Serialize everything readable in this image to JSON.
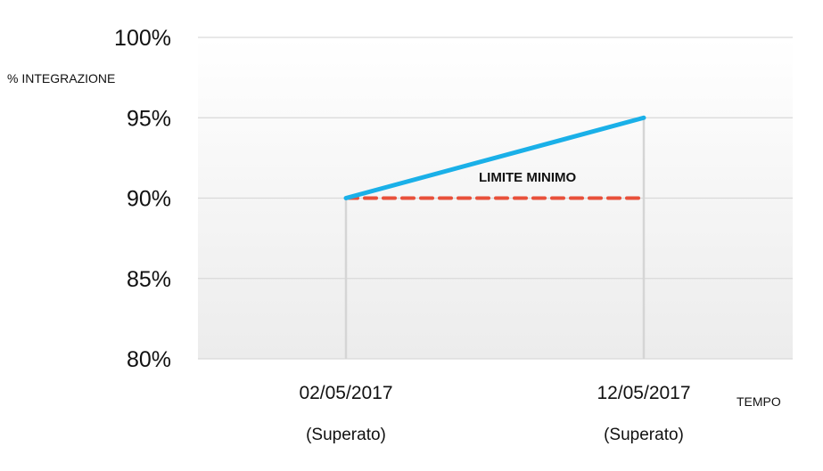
{
  "chart_data": {
    "type": "line",
    "ylabel": "% INTEGRAZIONE",
    "xlabel": "TEMPO",
    "ylim": [
      80,
      100
    ],
    "yticks": [
      {
        "value": 100,
        "label": "100%"
      },
      {
        "value": 95,
        "label": "95%"
      },
      {
        "value": 90,
        "label": "90%"
      },
      {
        "value": 85,
        "label": "85%"
      },
      {
        "value": 80,
        "label": "80%"
      }
    ],
    "categories": [
      {
        "label": "02/05/2017",
        "sublabel": "(Superato)"
      },
      {
        "label": "12/05/2017",
        "sublabel": "(Superato)"
      }
    ],
    "series": [
      {
        "values": [
          90,
          95
        ],
        "color": "#1ab0e8",
        "style": "solid"
      },
      {
        "name": "LIMITE MINIMO",
        "values": [
          90,
          90
        ],
        "color": "#e8503a",
        "style": "dashed"
      }
    ],
    "annotation": "LIMITE MINIMO",
    "grid": true
  }
}
